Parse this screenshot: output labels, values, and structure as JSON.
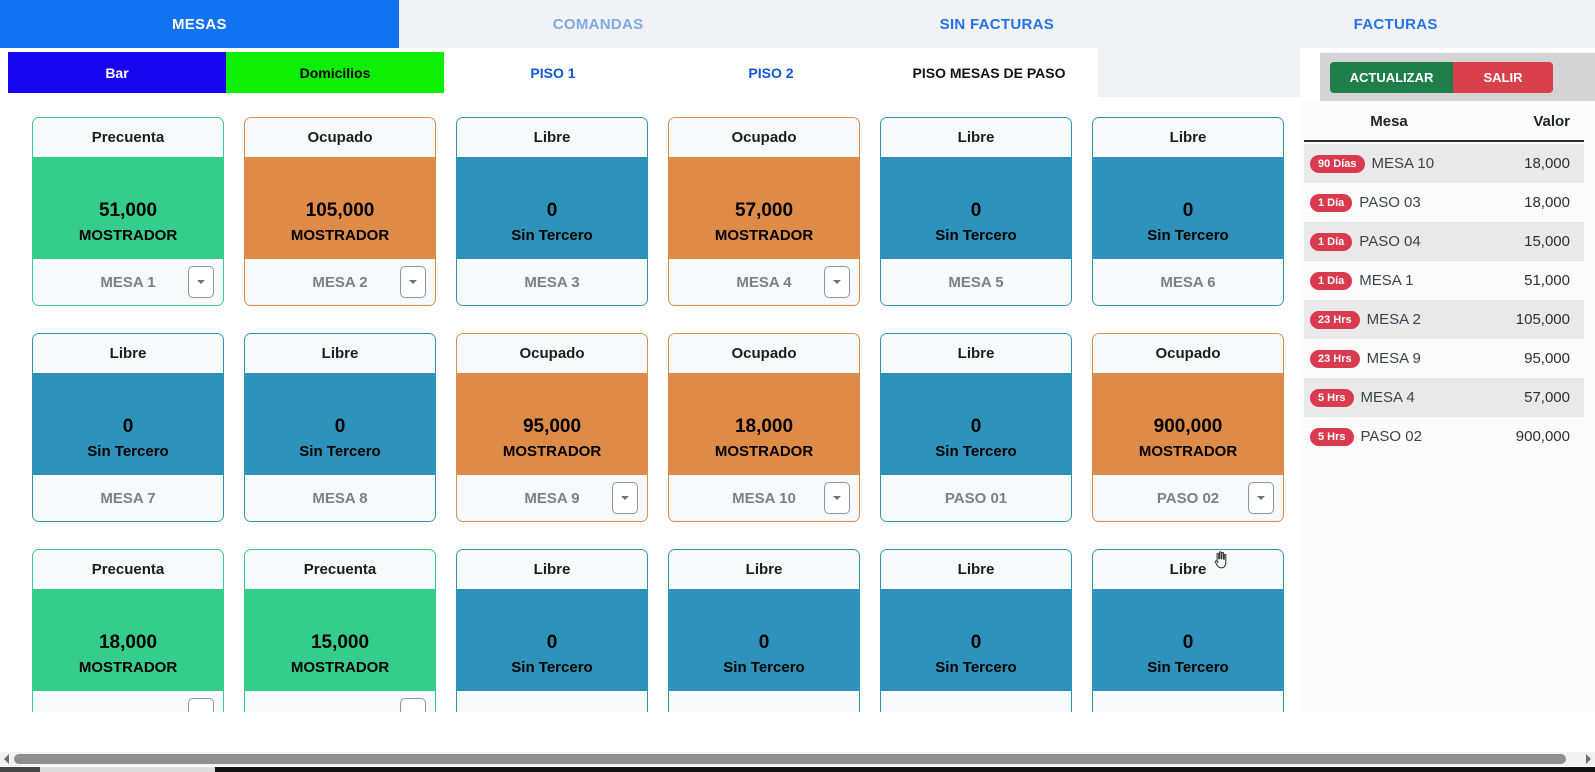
{
  "tabs": [
    {
      "label": "MESAS",
      "active": true,
      "color": "#ffffff"
    },
    {
      "label": "COMANDAS",
      "active": false,
      "color": "#7fa8e8"
    },
    {
      "label": "SIN FACTURAS",
      "active": false,
      "color": "#2272ee"
    },
    {
      "label": "FACTURAS",
      "active": false,
      "color": "#2272ee"
    }
  ],
  "subtabs": [
    {
      "label": "Bar",
      "bg": "#1806f0",
      "fg": "#ffffff",
      "active": false
    },
    {
      "label": "Domicilios",
      "bg": "#0cee02",
      "fg": "#000000",
      "active": false
    },
    {
      "label": "PISO 1",
      "bg": "",
      "fg": "#1256dd",
      "active": false
    },
    {
      "label": "PISO 2",
      "bg": "",
      "fg": "#1256dd",
      "active": false
    },
    {
      "label": "PISO MESAS DE PASO",
      "bg": "",
      "fg": "#141414",
      "active": true
    }
  ],
  "toolbar": {
    "refresh_label": "ACTUALIZAR",
    "exit_label": "SALIR"
  },
  "statuses": {
    "Precuenta": {
      "color": "#35cd8b"
    },
    "Ocupado": {
      "color": "#de8b47"
    },
    "Libre": {
      "color": "#2e93ba"
    }
  },
  "tables": [
    {
      "status": "Precuenta",
      "amount": "51,000",
      "source": "MOSTRADOR",
      "name": "MESA 1",
      "dropdown": true
    },
    {
      "status": "Ocupado",
      "amount": "105,000",
      "source": "MOSTRADOR",
      "name": "MESA 2",
      "dropdown": true
    },
    {
      "status": "Libre",
      "amount": "0",
      "source": "Sin Tercero",
      "name": "MESA 3",
      "dropdown": false
    },
    {
      "status": "Ocupado",
      "amount": "57,000",
      "source": "MOSTRADOR",
      "name": "MESA 4",
      "dropdown": true
    },
    {
      "status": "Libre",
      "amount": "0",
      "source": "Sin Tercero",
      "name": "MESA 5",
      "dropdown": false
    },
    {
      "status": "Libre",
      "amount": "0",
      "source": "Sin Tercero",
      "name": "MESA 6",
      "dropdown": false
    },
    {
      "status": "Libre",
      "amount": "0",
      "source": "Sin Tercero",
      "name": "MESA 7",
      "dropdown": false
    },
    {
      "status": "Libre",
      "amount": "0",
      "source": "Sin Tercero",
      "name": "MESA 8",
      "dropdown": false
    },
    {
      "status": "Ocupado",
      "amount": "95,000",
      "source": "MOSTRADOR",
      "name": "MESA 9",
      "dropdown": true
    },
    {
      "status": "Ocupado",
      "amount": "18,000",
      "source": "MOSTRADOR",
      "name": "MESA 10",
      "dropdown": true
    },
    {
      "status": "Libre",
      "amount": "0",
      "source": "Sin Tercero",
      "name": "PASO 01",
      "dropdown": false
    },
    {
      "status": "Ocupado",
      "amount": "900,000",
      "source": "MOSTRADOR",
      "name": "PASO 02",
      "dropdown": true
    },
    {
      "status": "Precuenta",
      "amount": "18,000",
      "source": "MOSTRADOR",
      "name": "",
      "dropdown": true
    },
    {
      "status": "Precuenta",
      "amount": "15,000",
      "source": "MOSTRADOR",
      "name": "",
      "dropdown": true
    },
    {
      "status": "Libre",
      "amount": "0",
      "source": "Sin Tercero",
      "name": "",
      "dropdown": false
    },
    {
      "status": "Libre",
      "amount": "0",
      "source": "Sin Tercero",
      "name": "",
      "dropdown": false
    },
    {
      "status": "Libre",
      "amount": "0",
      "source": "Sin Tercero",
      "name": "",
      "dropdown": false
    },
    {
      "status": "Libre",
      "amount": "0",
      "source": "Sin Tercero",
      "name": "",
      "dropdown": false
    }
  ],
  "invoice_panel": {
    "col_mesa": "Mesa",
    "col_valor": "Valor",
    "badge_color": "#d93a4e",
    "rows": [
      {
        "age": "90 Días",
        "name": "MESA 10",
        "value": "18,000"
      },
      {
        "age": "1 Día",
        "name": "PASO 03",
        "value": "18,000"
      },
      {
        "age": "1 Día",
        "name": "PASO 04",
        "value": "15,000"
      },
      {
        "age": "1 Día",
        "name": "MESA 1",
        "value": "51,000"
      },
      {
        "age": "23 Hrs",
        "name": "MESA 2",
        "value": "105,000"
      },
      {
        "age": "23 Hrs",
        "name": "MESA 9",
        "value": "95,000"
      },
      {
        "age": "5 Hrs",
        "name": "MESA 4",
        "value": "57,000"
      },
      {
        "age": "5 Hrs",
        "name": "PASO 02",
        "value": "900,000"
      }
    ]
  },
  "colors": {
    "active_tab": "#1273f0",
    "refresh_button": "#1f7e4a",
    "exit_button": "#d8404c"
  }
}
